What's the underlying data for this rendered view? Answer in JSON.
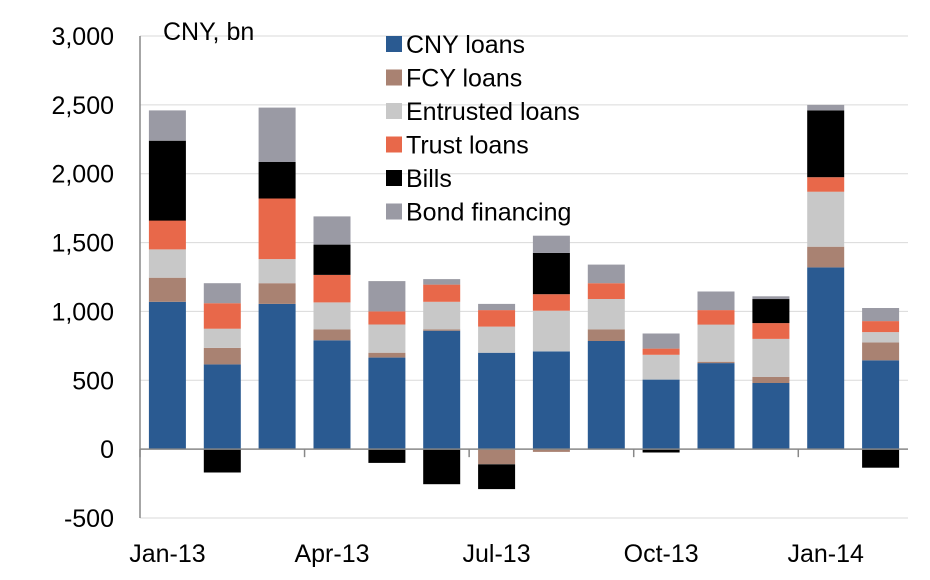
{
  "chart_data": {
    "type": "bar",
    "stacked": true,
    "unit_label": "CNY, bn",
    "categories": [
      "Jan-13",
      "Feb-13",
      "Mar-13",
      "Apr-13",
      "May-13",
      "Jun-13",
      "Jul-13",
      "Aug-13",
      "Sep-13",
      "Oct-13",
      "Nov-13",
      "Dec-13",
      "Jan-14",
      "Feb-14"
    ],
    "x_tick_labels": [
      "Jan-13",
      "Apr-13",
      "Jul-13",
      "Oct-13",
      "Jan-14"
    ],
    "ylim": [
      -500,
      3000
    ],
    "yticks": [
      -500,
      0,
      500,
      1000,
      1500,
      2000,
      2500,
      3000
    ],
    "ytick_labels": [
      "-500",
      "0",
      "500",
      "1,000",
      "1,500",
      "2,000",
      "2,500",
      "3,000"
    ],
    "grid": "horizontal",
    "legend": "top-center",
    "series": [
      {
        "name": "CNY loans",
        "color": "#2A5A91",
        "values": [
          1070,
          615,
          1055,
          790,
          665,
          860,
          700,
          710,
          785,
          505,
          625,
          480,
          1320,
          645
        ]
      },
      {
        "name": "FCY loans",
        "color": "#A98272",
        "values": [
          175,
          120,
          150,
          80,
          35,
          10,
          -110,
          -20,
          85,
          0,
          10,
          45,
          150,
          130
        ]
      },
      {
        "name": "Entrusted loans",
        "color": "#C8C8C8",
        "values": [
          205,
          140,
          175,
          195,
          205,
          200,
          190,
          295,
          220,
          180,
          270,
          275,
          400,
          75
        ]
      },
      {
        "name": "Trust loans",
        "color": "#E8684A",
        "values": [
          210,
          185,
          440,
          200,
          95,
          125,
          120,
          120,
          115,
          45,
          105,
          115,
          105,
          80
        ]
      },
      {
        "name": "Bills",
        "color": "#000000",
        "values": [
          580,
          -170,
          265,
          220,
          -100,
          -255,
          -180,
          300,
          0,
          -25,
          0,
          175,
          485,
          -135
        ]
      },
      {
        "name": "Bond financing",
        "color": "#9A9AA4",
        "values": [
          220,
          145,
          395,
          205,
          220,
          40,
          45,
          125,
          135,
          110,
          135,
          20,
          40,
          95
        ]
      }
    ]
  }
}
